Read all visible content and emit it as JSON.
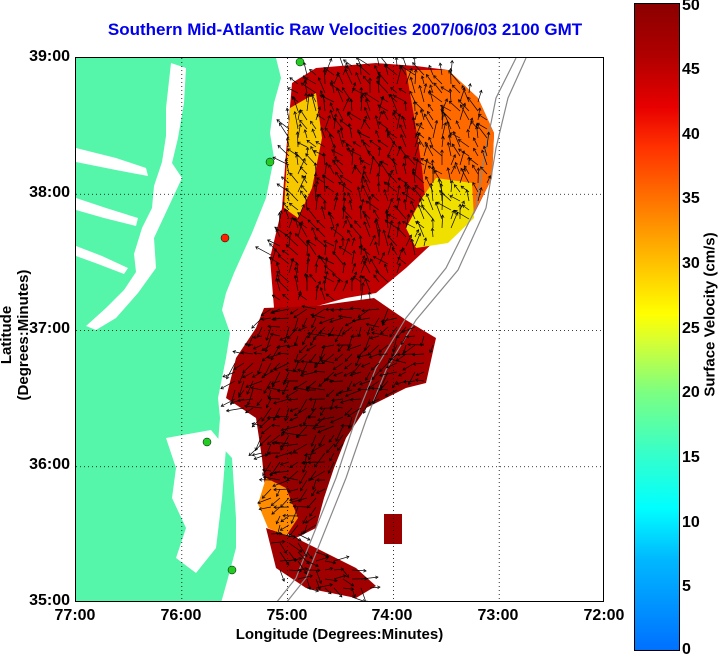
{
  "title": "Southern Mid-Atlantic Raw Velocities 2007/06/03 2100 GMT",
  "axes": {
    "x_label": "Longitude (Degrees:Minutes)",
    "y_label": "Latitude (Degrees:Minutes)",
    "x_ticks": [
      "77:00",
      "76:00",
      "75:00",
      "74:00",
      "73:00",
      "72:00"
    ],
    "y_ticks": [
      "39:00",
      "38:00",
      "37:00",
      "36:00",
      "35:00"
    ],
    "x_range": [
      -77,
      -72
    ],
    "y_range": [
      35,
      39
    ]
  },
  "colorbar": {
    "label": "Surface Velocity (cm/s)",
    "ticks": [
      "50",
      "45",
      "40",
      "35",
      "30",
      "25",
      "20",
      "15",
      "10",
      "5",
      "0"
    ],
    "range": [
      0,
      50
    ]
  },
  "colors": {
    "land": "#55f5aa",
    "water": "#ffffff",
    "title": "#0000ee",
    "station": "#22cc22",
    "station_red": "#ff2200"
  }
}
